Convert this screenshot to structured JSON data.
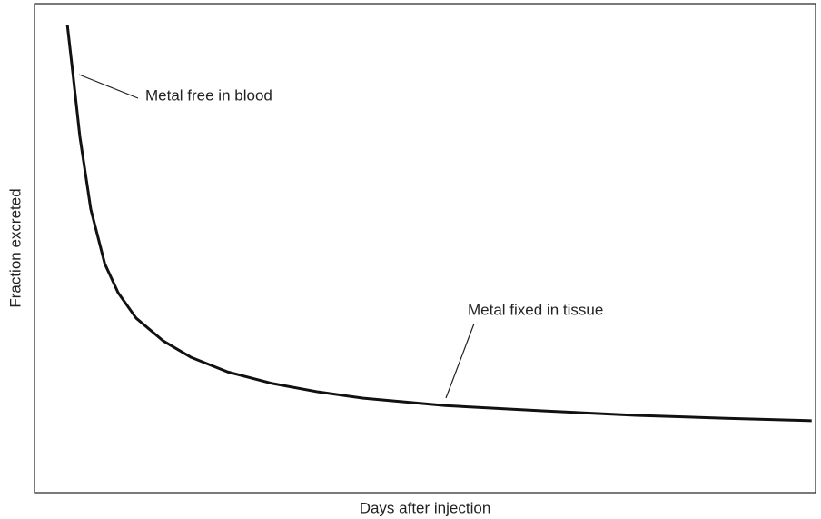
{
  "chart_data": {
    "type": "line",
    "x_label": "Days after injection",
    "y_label": "Fraction excreted",
    "annotations": [
      "Metal free in blood",
      "Metal fixed in tissue"
    ],
    "xlim": [
      0,
      100
    ],
    "ylim": [
      0,
      100
    ],
    "x": [
      4.2,
      4.9,
      5.8,
      7.2,
      9.0,
      10.7,
      13.0,
      16.5,
      20.0,
      24.7,
      30.5,
      36.3,
      42.1,
      52.6,
      65.3,
      77.0,
      88.6,
      99.5
    ],
    "series": [
      {
        "color": "#111111",
        "values": [
          95.7,
          85.9,
          72.9,
          58.0,
          46.8,
          40.9,
          35.7,
          31.0,
          27.7,
          24.7,
          22.3,
          20.6,
          19.3,
          17.8,
          16.7,
          15.8,
          15.2,
          14.7
        ]
      }
    ]
  }
}
